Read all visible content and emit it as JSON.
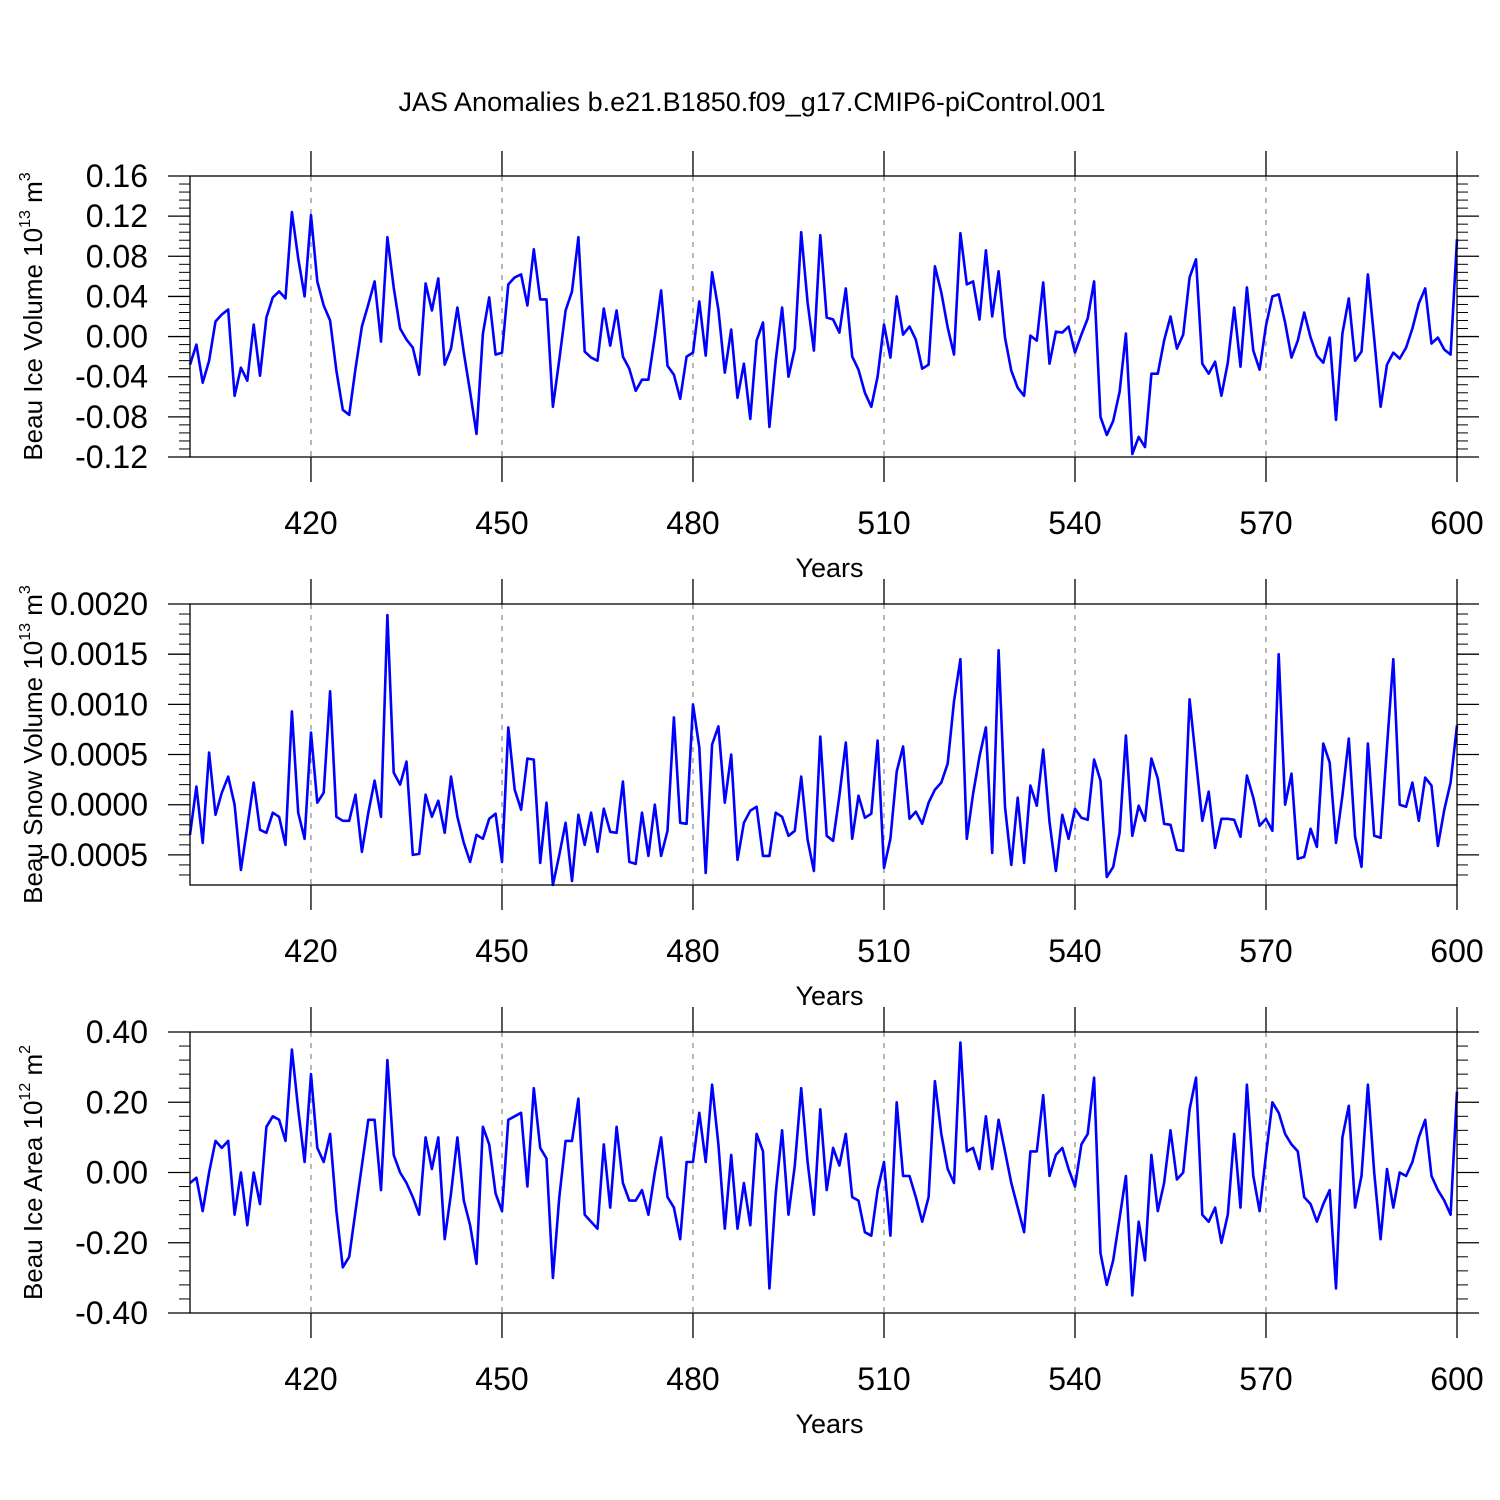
{
  "title": "JAS Anomalies b.e21.B1850.f09_g17.CMIP6-piControl.001",
  "chart_data": [
    {
      "type": "line",
      "ylabel": {
        "main": "Beau Ice Volume 10",
        "sup": "13",
        "unit": " m",
        "unit_sup": "3"
      },
      "xlabel": "Years",
      "xlim": [
        401,
        600
      ],
      "ylim": [
        -0.12,
        0.16
      ],
      "xticks": [
        420,
        450,
        480,
        510,
        540,
        570,
        600
      ],
      "xtick_labels": [
        "420",
        "450",
        "480",
        "510",
        "540",
        "570",
        "600"
      ],
      "yticks": [
        -0.12,
        -0.08,
        -0.04,
        0.0,
        0.04,
        0.08,
        0.12,
        0.16
      ],
      "ytick_labels": [
        "-0.12",
        "-0.08",
        "-0.04",
        "0.00",
        "0.04",
        "0.08",
        "0.12",
        "0.16"
      ],
      "grid": "vertical dashed at major x ticks",
      "series_color": "#0000ff",
      "x_start": 401,
      "values": [
        -0.028,
        -0.008,
        -0.046,
        -0.024,
        0.015,
        0.022,
        0.027,
        -0.059,
        -0.031,
        -0.044,
        0.012,
        -0.039,
        0.019,
        0.039,
        0.045,
        0.038,
        0.124,
        0.078,
        0.04,
        0.121,
        0.055,
        0.031,
        0.016,
        -0.034,
        -0.073,
        -0.078,
        -0.032,
        0.01,
        0.032,
        0.055,
        -0.005,
        0.099,
        0.049,
        0.008,
        -0.003,
        -0.011,
        -0.038,
        0.053,
        0.026,
        0.058,
        -0.028,
        -0.012,
        0.029,
        -0.016,
        -0.055,
        -0.097,
        0.003,
        0.039,
        -0.018,
        -0.016,
        0.052,
        0.059,
        0.062,
        0.031,
        0.087,
        0.037,
        0.037,
        -0.07,
        -0.023,
        0.026,
        0.045,
        0.099,
        -0.015,
        -0.021,
        -0.024,
        0.028,
        -0.009,
        0.026,
        -0.02,
        -0.032,
        -0.054,
        -0.043,
        -0.043,
        0.0,
        0.046,
        -0.029,
        -0.038,
        -0.062,
        -0.02,
        -0.016,
        0.035,
        -0.019,
        0.064,
        0.027,
        -0.036,
        0.007,
        -0.061,
        -0.027,
        -0.082,
        -0.004,
        0.014,
        -0.09,
        -0.024,
        0.029,
        -0.04,
        -0.012,
        0.104,
        0.034,
        -0.014,
        0.101,
        0.019,
        0.017,
        0.004,
        0.048,
        -0.02,
        -0.033,
        -0.056,
        -0.07,
        -0.04,
        0.012,
        -0.021,
        0.04,
        0.002,
        0.01,
        -0.003,
        -0.032,
        -0.028,
        0.07,
        0.044,
        0.009,
        -0.018,
        0.103,
        0.052,
        0.055,
        0.017,
        0.086,
        0.02,
        0.065,
        -0.001,
        -0.034,
        -0.051,
        -0.059,
        0.001,
        -0.004,
        0.054,
        -0.027,
        0.005,
        0.004,
        0.01,
        -0.016,
        0.002,
        0.018,
        0.055,
        -0.08,
        -0.098,
        -0.084,
        -0.055,
        0.003,
        -0.117,
        -0.1,
        -0.11,
        -0.037,
        -0.037,
        -0.004,
        0.02,
        -0.012,
        0.002,
        0.059,
        0.077,
        -0.027,
        -0.037,
        -0.025,
        -0.059,
        -0.026,
        0.029,
        -0.03,
        0.049,
        -0.014,
        -0.033,
        0.011,
        0.04,
        0.042,
        0.014,
        -0.021,
        -0.004,
        0.024,
        -0.001,
        -0.019,
        -0.026,
        -0.001,
        -0.083,
        0.003,
        0.038,
        -0.024,
        -0.015,
        0.062,
        -0.002,
        -0.07,
        -0.028,
        -0.016,
        -0.022,
        -0.011,
        0.008,
        0.033,
        0.048,
        -0.007,
        -0.001,
        -0.013,
        -0.018,
        0.097
      ]
    },
    {
      "type": "line",
      "ylabel": {
        "main": "Beau Snow Volume 10",
        "sup": "13",
        "unit": " m",
        "unit_sup": "3"
      },
      "xlabel": "Years",
      "xlim": [
        401,
        600
      ],
      "ylim": [
        -0.0008,
        0.002
      ],
      "xticks": [
        420,
        450,
        480,
        510,
        540,
        570,
        600
      ],
      "xtick_labels": [
        "420",
        "450",
        "480",
        "510",
        "540",
        "570",
        "600"
      ],
      "yticks": [
        -0.0005,
        0.0,
        0.0005,
        0.001,
        0.0015,
        0.002
      ],
      "ytick_labels": [
        "-0.0005",
        "0.0000",
        "0.0005",
        "0.0010",
        "0.0015",
        "0.0020"
      ],
      "grid": "vertical dashed at major x ticks",
      "series_color": "#0000ff",
      "x_start": 401,
      "values": [
        -0.0003,
        0.00018,
        -0.00038,
        0.00052,
        -0.0001,
        0.00012,
        0.00028,
        0.0,
        -0.00065,
        -0.00022,
        0.00022,
        -0.00025,
        -0.00028,
        -8e-05,
        -0.00012,
        -0.0004,
        0.00093,
        -8e-05,
        -0.00034,
        0.00072,
        2e-05,
        0.00012,
        0.00113,
        -0.00012,
        -0.00016,
        -0.00016,
        0.0001,
        -0.00047,
        -8e-05,
        0.00024,
        -0.00012,
        0.00189,
        0.00032,
        0.0002,
        0.00043,
        -0.0005,
        -0.00049,
        0.0001,
        -0.00012,
        4e-05,
        -0.00028,
        0.00028,
        -0.00012,
        -0.00038,
        -0.00057,
        -0.0003,
        -0.00034,
        -0.00014,
        -9e-05,
        -0.00057,
        0.00077,
        0.00015,
        -5e-05,
        0.00046,
        0.00045,
        -0.00058,
        2e-05,
        -0.0008,
        -0.0005,
        -0.00018,
        -0.00076,
        -0.0001,
        -0.0004,
        -8e-05,
        -0.00047,
        -4e-05,
        -0.00027,
        -0.00028,
        0.00023,
        -0.00057,
        -0.00059,
        -8e-05,
        -0.00051,
        0.0,
        -0.00051,
        -0.00026,
        0.00087,
        -0.00018,
        -0.00019,
        0.001,
        0.00057,
        -0.00068,
        0.0006,
        0.00078,
        2e-05,
        0.0005,
        -0.00055,
        -0.00018,
        -6e-05,
        -2e-05,
        -0.00051,
        -0.00051,
        -8e-05,
        -0.00012,
        -0.00031,
        -0.00026,
        0.00028,
        -0.00035,
        -0.00066,
        0.00068,
        -0.00031,
        -0.00036,
        9e-05,
        0.00062,
        -0.00034,
        9e-05,
        -0.00013,
        -9e-05,
        0.00064,
        -0.00063,
        -0.00034,
        0.00033,
        0.00058,
        -0.00014,
        -7e-05,
        -0.00019,
        2e-05,
        0.00015,
        0.00022,
        0.00041,
        0.00103,
        0.00145,
        -0.00034,
        0.00011,
        0.00048,
        0.00077,
        -0.00048,
        0.00154,
        -2e-05,
        -0.0006,
        7e-05,
        -0.00058,
        0.00019,
        -1e-05,
        0.00055,
        -0.00017,
        -0.00066,
        -0.0001,
        -0.00034,
        -4e-05,
        -0.00013,
        -0.00015,
        0.00045,
        0.00024,
        -0.00072,
        -0.00062,
        -0.00028,
        0.00069,
        -0.00031,
        -1e-05,
        -0.00016,
        0.00046,
        0.00026,
        -0.00019,
        -0.0002,
        -0.00045,
        -0.00046,
        0.00105,
        0.00044,
        -0.00016,
        0.00013,
        -0.00043,
        -0.00014,
        -0.00014,
        -0.00015,
        -0.00032,
        0.00029,
        7e-05,
        -0.00021,
        -0.00014,
        -0.00026,
        0.0015,
        0.0,
        0.00031,
        -0.00054,
        -0.00052,
        -0.00024,
        -0.00042,
        0.00061,
        0.00042,
        -0.00038,
        9e-05,
        0.00066,
        -0.00032,
        -0.00062,
        0.00061,
        -0.00031,
        -0.00033,
        0.00058,
        0.00145,
        0.0,
        -2e-05,
        0.00022,
        -0.00016,
        0.00027,
        0.00019,
        -0.00041,
        -5e-05,
        0.00022,
        0.00079
      ]
    },
    {
      "type": "line",
      "ylabel": {
        "main": "Beau Ice Area 10",
        "sup": "12",
        "unit": " m",
        "unit_sup": "2"
      },
      "xlabel": "Years",
      "xlim": [
        401,
        600
      ],
      "ylim": [
        -0.4,
        0.4
      ],
      "xticks": [
        420,
        450,
        480,
        510,
        540,
        570,
        600
      ],
      "xtick_labels": [
        "420",
        "450",
        "480",
        "510",
        "540",
        "570",
        "600"
      ],
      "yticks": [
        -0.4,
        -0.2,
        0.0,
        0.2,
        0.4
      ],
      "ytick_labels": [
        "-0.40",
        "-0.20",
        "0.00",
        "0.20",
        "0.40"
      ],
      "grid": "vertical dashed at major x ticks",
      "series_color": "#0000ff",
      "x_start": 401,
      "values": [
        -0.03,
        -0.015,
        -0.11,
        0.0,
        0.09,
        0.07,
        0.09,
        -0.12,
        0.0,
        -0.15,
        0.0,
        -0.09,
        0.13,
        0.16,
        0.15,
        0.09,
        0.35,
        0.18,
        0.03,
        0.28,
        0.07,
        0.03,
        0.11,
        -0.11,
        -0.27,
        -0.24,
        -0.11,
        0.02,
        0.15,
        0.15,
        -0.05,
        0.32,
        0.05,
        0.0,
        -0.03,
        -0.07,
        -0.12,
        0.1,
        0.01,
        0.1,
        -0.19,
        -0.06,
        0.1,
        -0.08,
        -0.15,
        -0.26,
        0.13,
        0.08,
        -0.06,
        -0.11,
        0.15,
        0.16,
        0.17,
        -0.04,
        0.24,
        0.07,
        0.04,
        -0.3,
        -0.07,
        0.09,
        0.09,
        0.21,
        -0.12,
        -0.14,
        -0.16,
        0.08,
        -0.1,
        0.13,
        -0.03,
        -0.08,
        -0.08,
        -0.05,
        -0.12,
        0.0,
        0.1,
        -0.07,
        -0.1,
        -0.19,
        0.03,
        0.03,
        0.17,
        0.03,
        0.25,
        0.08,
        -0.16,
        0.05,
        -0.16,
        -0.03,
        -0.15,
        0.11,
        0.06,
        -0.33,
        -0.06,
        0.12,
        -0.12,
        0.02,
        0.24,
        0.03,
        -0.12,
        0.18,
        -0.05,
        0.07,
        0.02,
        0.11,
        -0.07,
        -0.08,
        -0.17,
        -0.18,
        -0.05,
        0.03,
        -0.18,
        0.2,
        -0.01,
        -0.01,
        -0.07,
        -0.14,
        -0.07,
        0.26,
        0.11,
        0.01,
        -0.03,
        0.37,
        0.06,
        0.07,
        0.01,
        0.16,
        0.01,
        0.15,
        0.06,
        -0.03,
        -0.1,
        -0.17,
        0.06,
        0.06,
        0.22,
        -0.01,
        0.05,
        0.07,
        0.01,
        -0.04,
        0.08,
        0.11,
        0.27,
        -0.23,
        -0.32,
        -0.25,
        -0.13,
        -0.01,
        -0.35,
        -0.14,
        -0.25,
        0.05,
        -0.11,
        -0.03,
        0.12,
        -0.02,
        0.0,
        0.18,
        0.27,
        -0.12,
        -0.14,
        -0.1,
        -0.2,
        -0.12,
        0.11,
        -0.1,
        0.25,
        -0.01,
        -0.11,
        0.05,
        0.2,
        0.17,
        0.11,
        0.08,
        0.06,
        -0.07,
        -0.09,
        -0.14,
        -0.09,
        -0.05,
        -0.33,
        0.1,
        0.19,
        -0.1,
        -0.01,
        0.25,
        0.0,
        -0.19,
        0.01,
        -0.1,
        0.0,
        -0.01,
        0.03,
        0.1,
        0.15,
        -0.01,
        -0.05,
        -0.08,
        -0.12,
        0.23
      ]
    }
  ]
}
